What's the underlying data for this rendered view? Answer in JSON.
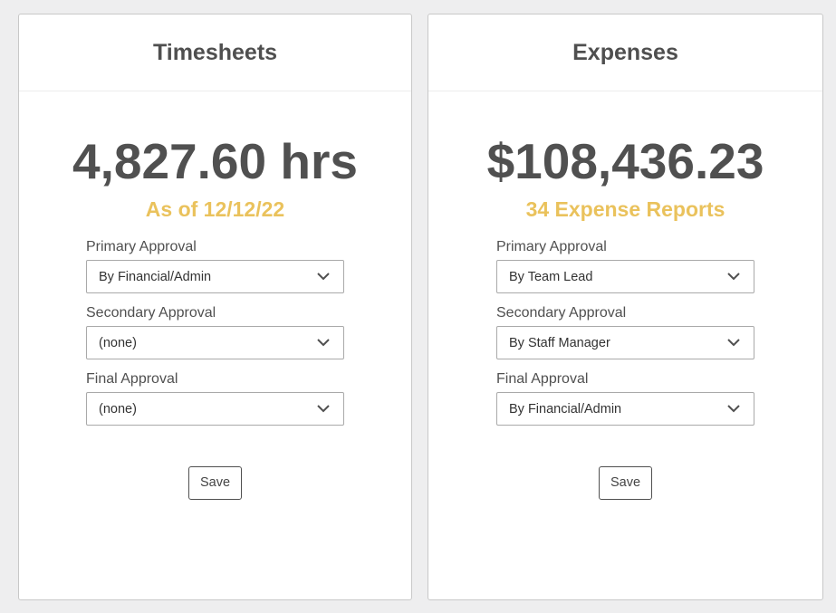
{
  "timesheets": {
    "title": "Timesheets",
    "total": "4,827.60 hrs",
    "subtitle": "As of 12/12/22",
    "fields": [
      {
        "label": "Primary Approval",
        "value": "By Financial/Admin"
      },
      {
        "label": "Secondary Approval",
        "value": "(none)"
      },
      {
        "label": "Final Approval",
        "value": "(none)"
      }
    ],
    "save_label": "Save"
  },
  "expenses": {
    "title": "Expenses",
    "total": "$108,436.23",
    "subtitle": "34 Expense Reports",
    "fields": [
      {
        "label": "Primary Approval",
        "value": "By Team Lead"
      },
      {
        "label": "Secondary Approval",
        "value": "By Staff Manager"
      },
      {
        "label": "Final Approval",
        "value": "By Financial/Admin"
      }
    ],
    "save_label": "Save"
  },
  "icons": {
    "dropdown": "chevron-down-icon"
  },
  "colors": {
    "accent": "#eac25c",
    "text": "#505050",
    "background": "#eeeeef"
  }
}
